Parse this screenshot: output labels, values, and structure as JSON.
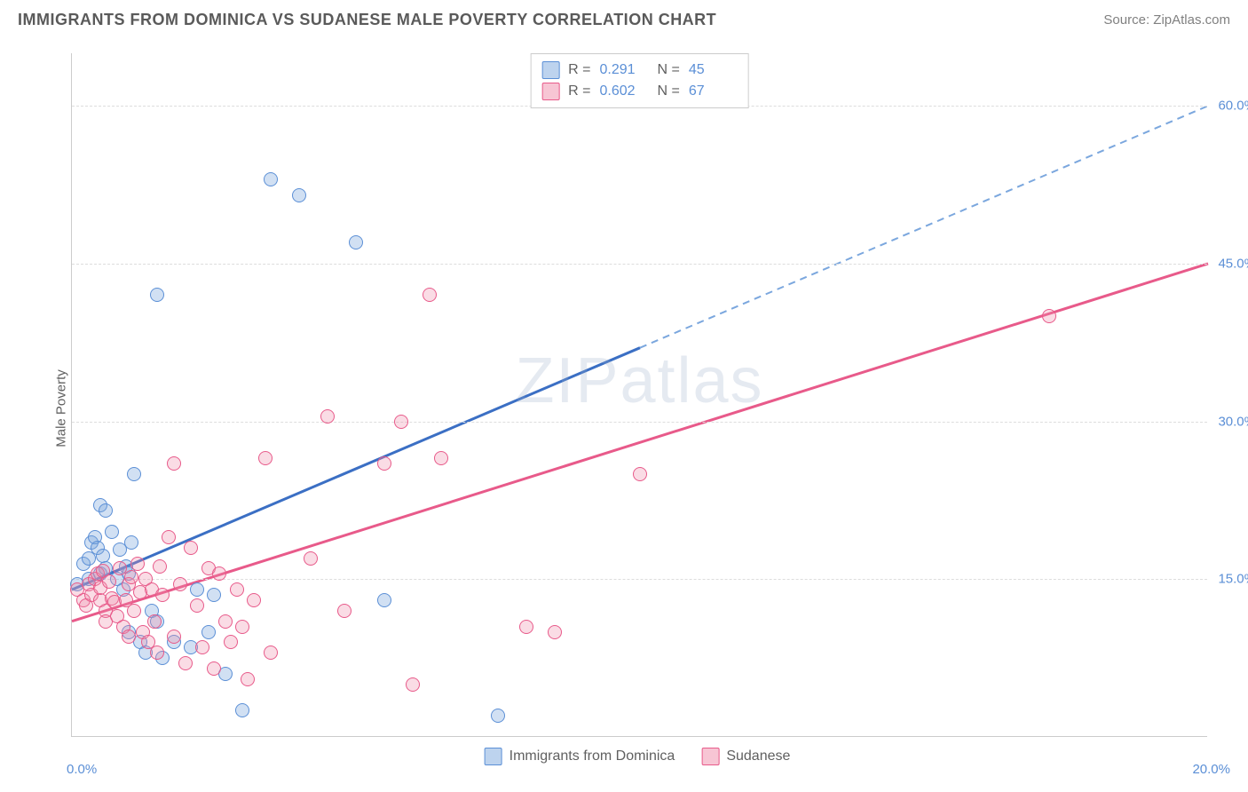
{
  "header": {
    "title": "IMMIGRANTS FROM DOMINICA VS SUDANESE MALE POVERTY CORRELATION CHART",
    "source_label": "Source: ",
    "source_value": "ZipAtlas.com"
  },
  "chart": {
    "type": "scatter",
    "y_axis_label": "Male Poverty",
    "x_origin": "0.0%",
    "x_end": "20.0%",
    "xlim": [
      0,
      20
    ],
    "ylim": [
      0,
      65
    ],
    "y_ticks": [
      {
        "value": 15,
        "label": "15.0%"
      },
      {
        "value": 30,
        "label": "30.0%"
      },
      {
        "value": 45,
        "label": "45.0%"
      },
      {
        "value": 60,
        "label": "60.0%"
      }
    ],
    "grid_color": "#dddddd",
    "border_color": "#cccccc",
    "background_color": "#ffffff",
    "watermark": "ZIPatlas",
    "series": [
      {
        "name": "Immigrants from Dominica",
        "color_fill": "rgba(123,167,222,0.35)",
        "color_stroke": "#5b8fd6",
        "trend_color": "#3b6fc4",
        "trend_dash_color": "#7ba7de",
        "r_value": "0.291",
        "n_value": "45",
        "trend": {
          "x1": 0,
          "y1": 14,
          "x2": 10,
          "y2": 37,
          "x2_dash": 20,
          "y2_dash": 60
        },
        "points": [
          [
            0.1,
            14.5
          ],
          [
            0.2,
            16.5
          ],
          [
            0.3,
            17
          ],
          [
            0.3,
            15
          ],
          [
            0.35,
            18.5
          ],
          [
            0.4,
            19
          ],
          [
            0.45,
            18
          ],
          [
            0.5,
            22
          ],
          [
            0.5,
            15.5
          ],
          [
            0.55,
            17.2
          ],
          [
            0.6,
            21.5
          ],
          [
            0.6,
            16
          ],
          [
            0.7,
            19.5
          ],
          [
            0.8,
            15
          ],
          [
            0.85,
            17.8
          ],
          [
            0.9,
            14
          ],
          [
            0.95,
            16.2
          ],
          [
            1.0,
            15.5
          ],
          [
            1.0,
            10
          ],
          [
            1.05,
            18.5
          ],
          [
            1.1,
            25
          ],
          [
            1.2,
            9
          ],
          [
            1.3,
            8
          ],
          [
            1.4,
            12
          ],
          [
            1.5,
            11
          ],
          [
            1.5,
            42
          ],
          [
            1.6,
            7.5
          ],
          [
            1.8,
            9
          ],
          [
            2.1,
            8.5
          ],
          [
            2.2,
            14
          ],
          [
            2.4,
            10
          ],
          [
            2.5,
            13.5
          ],
          [
            2.7,
            6
          ],
          [
            3.0,
            2.5
          ],
          [
            3.5,
            53
          ],
          [
            4.0,
            51.5
          ],
          [
            5.0,
            47
          ],
          [
            5.5,
            13
          ],
          [
            7.5,
            2
          ]
        ]
      },
      {
        "name": "Sudanese",
        "color_fill": "rgba(240,140,170,0.3)",
        "color_stroke": "#e85a8a",
        "trend_color": "#e85a8a",
        "r_value": "0.602",
        "n_value": "67",
        "trend": {
          "x1": 0,
          "y1": 11,
          "x2": 20,
          "y2": 45
        },
        "points": [
          [
            0.1,
            14
          ],
          [
            0.2,
            13
          ],
          [
            0.25,
            12.5
          ],
          [
            0.3,
            14.5
          ],
          [
            0.35,
            13.5
          ],
          [
            0.4,
            15
          ],
          [
            0.45,
            15.5
          ],
          [
            0.5,
            13
          ],
          [
            0.5,
            14.2
          ],
          [
            0.55,
            15.8
          ],
          [
            0.6,
            12
          ],
          [
            0.6,
            11
          ],
          [
            0.65,
            14.8
          ],
          [
            0.7,
            13.2
          ],
          [
            0.75,
            12.8
          ],
          [
            0.8,
            11.5
          ],
          [
            0.85,
            16
          ],
          [
            0.9,
            10.5
          ],
          [
            0.95,
            13
          ],
          [
            1.0,
            9.5
          ],
          [
            1.0,
            14.5
          ],
          [
            1.05,
            15.2
          ],
          [
            1.1,
            12
          ],
          [
            1.15,
            16.5
          ],
          [
            1.2,
            13.8
          ],
          [
            1.25,
            10
          ],
          [
            1.3,
            15
          ],
          [
            1.35,
            9
          ],
          [
            1.4,
            14
          ],
          [
            1.45,
            11
          ],
          [
            1.5,
            8
          ],
          [
            1.55,
            16.2
          ],
          [
            1.6,
            13.5
          ],
          [
            1.7,
            19
          ],
          [
            1.8,
            9.5
          ],
          [
            1.8,
            26
          ],
          [
            1.9,
            14.5
          ],
          [
            2.0,
            7
          ],
          [
            2.1,
            18
          ],
          [
            2.2,
            12.5
          ],
          [
            2.3,
            8.5
          ],
          [
            2.4,
            16
          ],
          [
            2.5,
            6.5
          ],
          [
            2.6,
            15.5
          ],
          [
            2.7,
            11
          ],
          [
            2.8,
            9
          ],
          [
            2.9,
            14
          ],
          [
            3.0,
            10.5
          ],
          [
            3.1,
            5.5
          ],
          [
            3.2,
            13
          ],
          [
            3.4,
            26.5
          ],
          [
            3.5,
            8
          ],
          [
            4.2,
            17
          ],
          [
            4.5,
            30.5
          ],
          [
            4.8,
            12
          ],
          [
            5.5,
            26
          ],
          [
            5.8,
            30
          ],
          [
            6.0,
            5
          ],
          [
            6.3,
            42
          ],
          [
            6.5,
            26.5
          ],
          [
            8.0,
            10.5
          ],
          [
            8.5,
            10
          ],
          [
            10.0,
            25
          ],
          [
            17.2,
            40
          ]
        ]
      }
    ],
    "legend_top": {
      "r_label": "R  =",
      "n_label": "N  ="
    },
    "legend_bottom": [
      {
        "swatch": "blue",
        "label": "Immigrants from Dominica"
      },
      {
        "swatch": "pink",
        "label": "Sudanese"
      }
    ]
  }
}
